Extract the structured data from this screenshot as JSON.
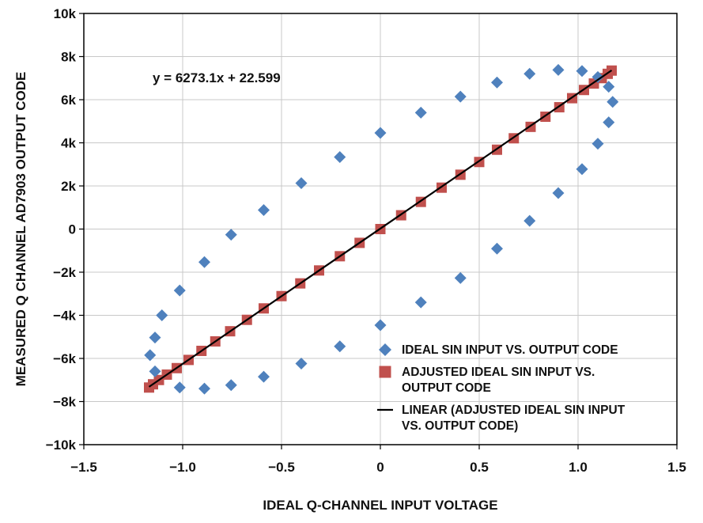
{
  "chart_data": {
    "type": "scatter",
    "xlabel": "IDEAL Q-CHANNEL INPUT VOLTAGE",
    "ylabel": "MEASURED Q CHANNEL AD7903 OUTPUT CODE",
    "xlim": [
      -1.5,
      1.5
    ],
    "ylim": [
      -10000,
      10000
    ],
    "x_ticks": [
      -1.5,
      -1.0,
      -0.5,
      0,
      0.5,
      1.0,
      1.5
    ],
    "x_tick_labels": [
      "−1.5",
      "−1.0",
      "−0.5",
      "0",
      "0.5",
      "1.0",
      "1.5"
    ],
    "y_ticks": [
      -10000,
      -8000,
      -6000,
      -4000,
      -2000,
      0,
      2000,
      4000,
      6000,
      8000,
      10000
    ],
    "y_tick_labels": [
      "−10k",
      "−8k",
      "−6k",
      "−4k",
      "−2k",
      "0",
      "2k",
      "4k",
      "6k",
      "8k",
      "10k"
    ],
    "grid": true,
    "legend_position": "bottom-right",
    "annotation": "y = 6273.1x + 22.599",
    "colors": {
      "ideal": "#4f81bd",
      "adjusted": "#c0504d",
      "linear": "#000000"
    },
    "series": [
      {
        "name": "IDEAL SIN INPUT VS. OUTPUT CODE",
        "marker": "diamond",
        "x": [
          -1.165,
          -1.14,
          -1.14,
          -1.105,
          -1.015,
          -1.015,
          -0.89,
          -0.89,
          -0.755,
          -0.755,
          -0.59,
          -0.59,
          -0.4,
          -0.4,
          -0.205,
          -0.205,
          0.0,
          0.0,
          0.205,
          0.205,
          0.405,
          0.405,
          0.59,
          0.59,
          0.755,
          0.755,
          0.9,
          0.9,
          1.02,
          1.02,
          1.1,
          1.1,
          1.155,
          1.155,
          1.175
        ],
        "y": [
          -5850,
          -6600,
          -5030,
          -4000,
          -2850,
          -7350,
          -1530,
          -7400,
          -260,
          -7240,
          880,
          -6850,
          2130,
          -6240,
          3340,
          -5440,
          4460,
          -4460,
          5400,
          -3400,
          6140,
          -2270,
          6800,
          -910,
          7200,
          380,
          7380,
          1670,
          7330,
          2780,
          7050,
          3960,
          6600,
          4950,
          5900
        ]
      },
      {
        "name": "ADJUSTED IDEAL SIN INPUT VS. OUTPUT CODE",
        "marker": "square",
        "x": [
          -1.17,
          -1.15,
          -1.12,
          -1.08,
          -1.03,
          -0.97,
          -0.905,
          -0.835,
          -0.76,
          -0.675,
          -0.59,
          -0.5,
          -0.405,
          -0.31,
          -0.205,
          -0.105,
          0.0,
          0.105,
          0.205,
          0.31,
          0.405,
          0.5,
          0.59,
          0.675,
          0.76,
          0.835,
          0.905,
          0.97,
          1.03,
          1.08,
          1.12,
          1.15,
          1.17
        ],
        "y": [
          -7350,
          -7200,
          -7000,
          -6750,
          -6450,
          -6070,
          -5650,
          -5210,
          -4740,
          -4210,
          -3680,
          -3110,
          -2520,
          -1920,
          -1260,
          -640,
          0,
          640,
          1260,
          1920,
          2520,
          3110,
          3680,
          4210,
          4740,
          5210,
          5650,
          6070,
          6450,
          6750,
          7000,
          7200,
          7350
        ]
      },
      {
        "name": "LINEAR (ADJUSTED IDEAL SIN INPUT VS. OUTPUT CODE)",
        "type": "line",
        "slope": 6273.1,
        "intercept": 22.599,
        "x_range": [
          -1.17,
          1.17
        ]
      }
    ],
    "legend": [
      {
        "marker": "diamond",
        "lines": [
          "IDEAL SIN INPUT VS. OUTPUT CODE"
        ]
      },
      {
        "marker": "square",
        "lines": [
          "ADJUSTED IDEAL SIN INPUT VS.",
          "OUTPUT CODE"
        ]
      },
      {
        "marker": "line",
        "lines": [
          "LINEAR (ADJUSTED IDEAL SIN INPUT",
          "VS. OUTPUT CODE)"
        ]
      }
    ]
  }
}
